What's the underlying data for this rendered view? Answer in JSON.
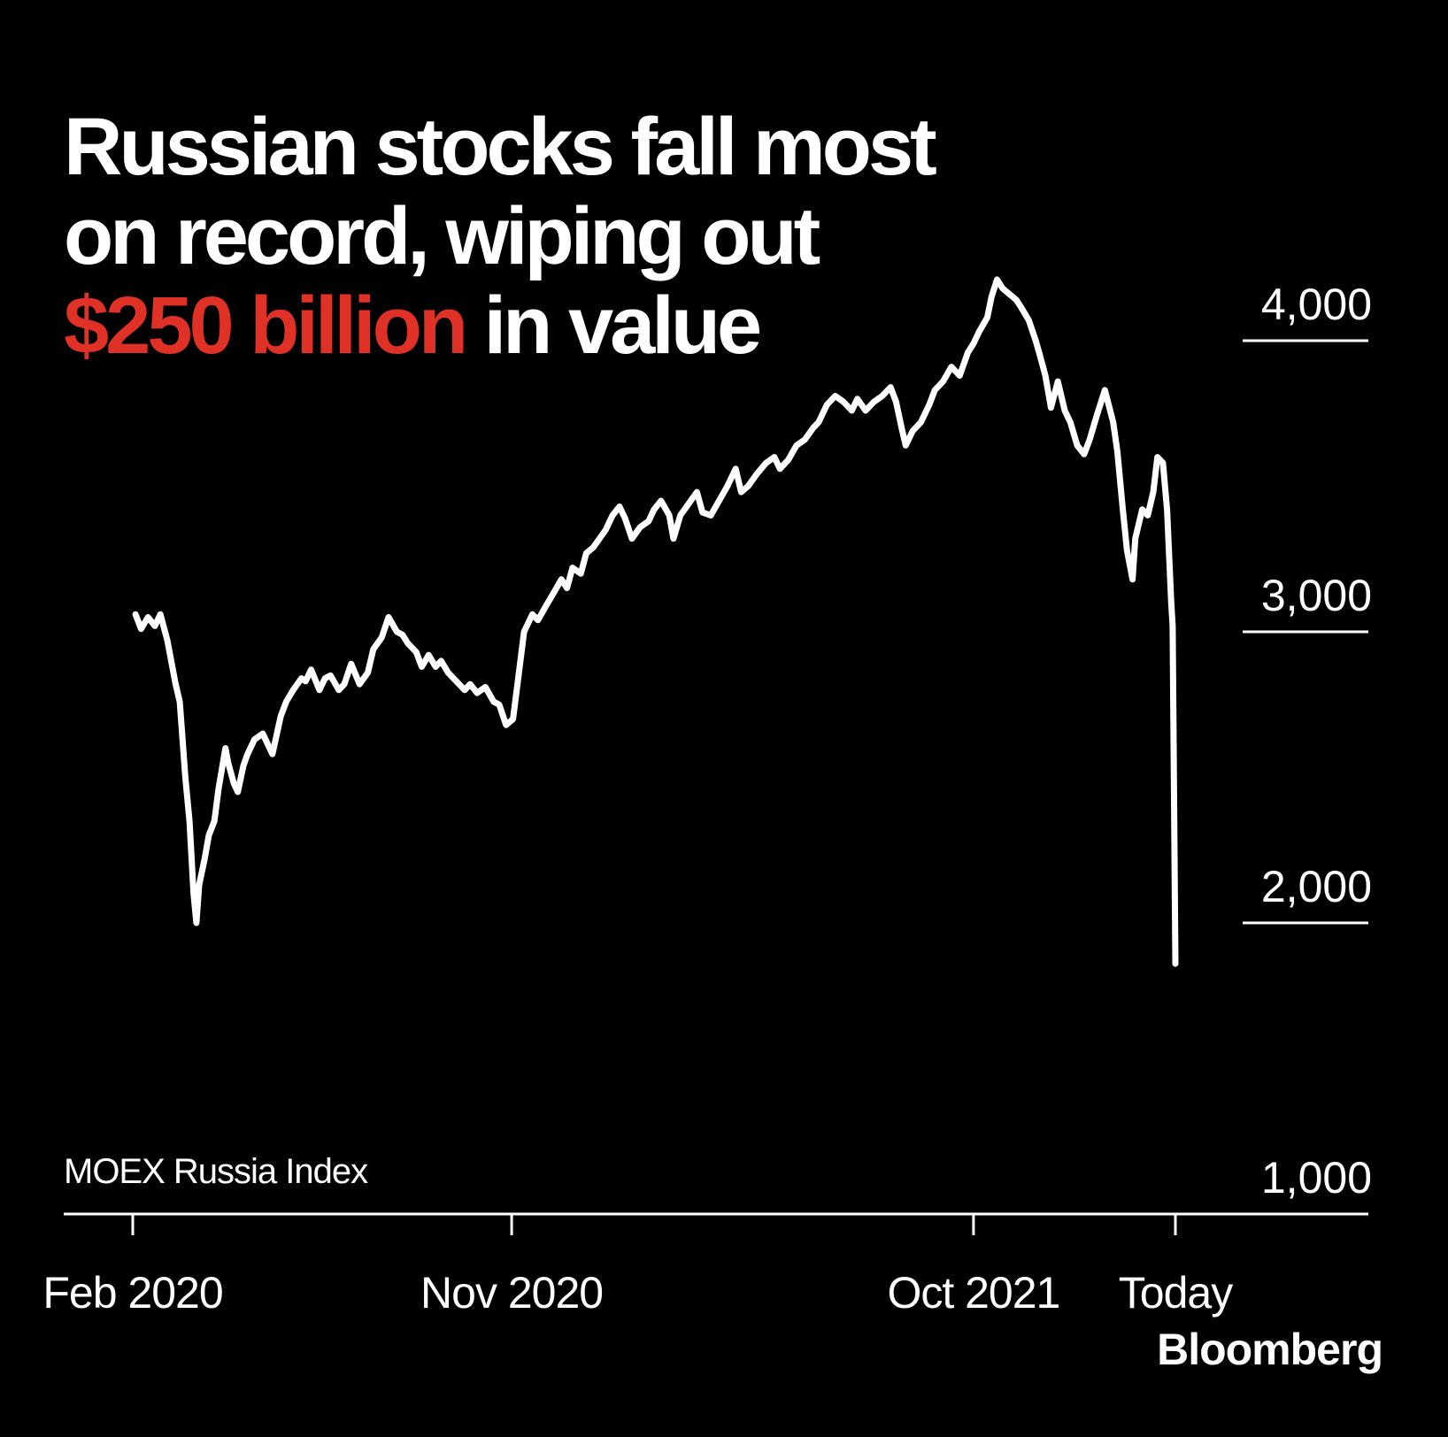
{
  "title_lines": [
    "Russian stocks fall most",
    "on record, wiping out"
  ],
  "title_highlight": "$250 billion",
  "title_rest": " in value",
  "brand": "Bloomberg",
  "colors": {
    "background": "#000000",
    "line": "#ffffff",
    "highlight": "#e03127"
  },
  "chart_data": {
    "type": "line",
    "title": "Russian stocks fall most on record, wiping out $250 billion in value",
    "series_label": "MOEX Russia Index",
    "grid": false,
    "ylim": [
      1000,
      4200
    ],
    "y_ticks": [
      {
        "value": 1000,
        "label": "1,000"
      },
      {
        "value": 2000,
        "label": "2,000"
      },
      {
        "value": 3000,
        "label": "3,000"
      },
      {
        "value": 4000,
        "label": "4,000"
      }
    ],
    "x_ticks": [
      {
        "date": "2020-02-01",
        "label": "Feb 2020"
      },
      {
        "date": "2020-11-01",
        "label": "Nov 2020"
      },
      {
        "date": "2021-10-01",
        "label": "Oct 2021"
      },
      {
        "date": "2022-02-24",
        "label": "Today"
      }
    ],
    "series": [
      {
        "points": [
          [
            "2020-02-03",
            3060
          ],
          [
            "2020-02-07",
            3010
          ],
          [
            "2020-02-12",
            3050
          ],
          [
            "2020-02-17",
            3020
          ],
          [
            "2020-02-21",
            3060
          ],
          [
            "2020-02-26",
            2970
          ],
          [
            "2020-03-03",
            2820
          ],
          [
            "2020-03-06",
            2760
          ],
          [
            "2020-03-10",
            2500
          ],
          [
            "2020-03-13",
            2350
          ],
          [
            "2020-03-16",
            2100
          ],
          [
            "2020-03-18",
            2000
          ],
          [
            "2020-03-20",
            2130
          ],
          [
            "2020-03-24",
            2220
          ],
          [
            "2020-03-27",
            2300
          ],
          [
            "2020-03-31",
            2350
          ],
          [
            "2020-04-03",
            2460
          ],
          [
            "2020-04-08",
            2600
          ],
          [
            "2020-04-10",
            2550
          ],
          [
            "2020-04-14",
            2480
          ],
          [
            "2020-04-17",
            2450
          ],
          [
            "2020-04-21",
            2540
          ],
          [
            "2020-04-24",
            2580
          ],
          [
            "2020-04-29",
            2630
          ],
          [
            "2020-05-05",
            2650
          ],
          [
            "2020-05-12",
            2580
          ],
          [
            "2020-05-18",
            2710
          ],
          [
            "2020-05-22",
            2760
          ],
          [
            "2020-05-27",
            2800
          ],
          [
            "2020-06-02",
            2840
          ],
          [
            "2020-06-05",
            2830
          ],
          [
            "2020-06-09",
            2870
          ],
          [
            "2020-06-15",
            2800
          ],
          [
            "2020-06-19",
            2840
          ],
          [
            "2020-06-23",
            2850
          ],
          [
            "2020-06-29",
            2800
          ],
          [
            "2020-07-03",
            2820
          ],
          [
            "2020-07-08",
            2890
          ],
          [
            "2020-07-14",
            2820
          ],
          [
            "2020-07-20",
            2860
          ],
          [
            "2020-07-24",
            2940
          ],
          [
            "2020-07-30",
            2980
          ],
          [
            "2020-08-04",
            3050
          ],
          [
            "2020-08-10",
            3000
          ],
          [
            "2020-08-14",
            2990
          ],
          [
            "2020-08-18",
            2960
          ],
          [
            "2020-08-24",
            2930
          ],
          [
            "2020-08-28",
            2880
          ],
          [
            "2020-09-02",
            2920
          ],
          [
            "2020-09-07",
            2880
          ],
          [
            "2020-09-11",
            2900
          ],
          [
            "2020-09-16",
            2860
          ],
          [
            "2020-09-22",
            2830
          ],
          [
            "2020-09-28",
            2800
          ],
          [
            "2020-10-02",
            2820
          ],
          [
            "2020-10-07",
            2790
          ],
          [
            "2020-10-13",
            2810
          ],
          [
            "2020-10-19",
            2760
          ],
          [
            "2020-10-23",
            2750
          ],
          [
            "2020-10-28",
            2680
          ],
          [
            "2020-11-02",
            2700
          ],
          [
            "2020-11-06",
            2850
          ],
          [
            "2020-11-10",
            3000
          ],
          [
            "2020-11-16",
            3060
          ],
          [
            "2020-11-20",
            3040
          ],
          [
            "2020-11-26",
            3090
          ],
          [
            "2020-12-01",
            3130
          ],
          [
            "2020-12-07",
            3180
          ],
          [
            "2020-12-11",
            3150
          ],
          [
            "2020-12-15",
            3220
          ],
          [
            "2020-12-21",
            3200
          ],
          [
            "2020-12-25",
            3270
          ],
          [
            "2020-12-30",
            3290
          ],
          [
            "2021-01-08",
            3350
          ],
          [
            "2021-01-13",
            3400
          ],
          [
            "2021-01-18",
            3430
          ],
          [
            "2021-01-22",
            3390
          ],
          [
            "2021-01-27",
            3320
          ],
          [
            "2021-02-02",
            3360
          ],
          [
            "2021-02-08",
            3380
          ],
          [
            "2021-02-12",
            3420
          ],
          [
            "2021-02-17",
            3450
          ],
          [
            "2021-02-23",
            3400
          ],
          [
            "2021-02-26",
            3320
          ],
          [
            "2021-03-03",
            3400
          ],
          [
            "2021-03-09",
            3440
          ],
          [
            "2021-03-15",
            3480
          ],
          [
            "2021-03-19",
            3410
          ],
          [
            "2021-03-25",
            3400
          ],
          [
            "2021-03-31",
            3450
          ],
          [
            "2021-04-06",
            3500
          ],
          [
            "2021-04-12",
            3560
          ],
          [
            "2021-04-16",
            3480
          ],
          [
            "2021-04-21",
            3500
          ],
          [
            "2021-04-27",
            3540
          ],
          [
            "2021-05-04",
            3580
          ],
          [
            "2021-05-10",
            3600
          ],
          [
            "2021-05-14",
            3560
          ],
          [
            "2021-05-20",
            3590
          ],
          [
            "2021-05-26",
            3640
          ],
          [
            "2021-06-01",
            3660
          ],
          [
            "2021-06-07",
            3700
          ],
          [
            "2021-06-11",
            3720
          ],
          [
            "2021-06-17",
            3780
          ],
          [
            "2021-06-23",
            3810
          ],
          [
            "2021-06-29",
            3790
          ],
          [
            "2021-07-05",
            3760
          ],
          [
            "2021-07-09",
            3800
          ],
          [
            "2021-07-15",
            3760
          ],
          [
            "2021-07-21",
            3790
          ],
          [
            "2021-07-27",
            3810
          ],
          [
            "2021-08-02",
            3840
          ],
          [
            "2021-08-06",
            3790
          ],
          [
            "2021-08-10",
            3700
          ],
          [
            "2021-08-13",
            3640
          ],
          [
            "2021-08-18",
            3690
          ],
          [
            "2021-08-24",
            3720
          ],
          [
            "2021-08-30",
            3780
          ],
          [
            "2021-09-03",
            3830
          ],
          [
            "2021-09-09",
            3860
          ],
          [
            "2021-09-15",
            3910
          ],
          [
            "2021-09-21",
            3880
          ],
          [
            "2021-09-27",
            3960
          ],
          [
            "2021-10-01",
            3990
          ],
          [
            "2021-10-05",
            4030
          ],
          [
            "2021-10-11",
            4080
          ],
          [
            "2021-10-14",
            4150
          ],
          [
            "2021-10-18",
            4210
          ],
          [
            "2021-10-22",
            4180
          ],
          [
            "2021-10-27",
            4160
          ],
          [
            "2021-11-01",
            4140
          ],
          [
            "2021-11-05",
            4110
          ],
          [
            "2021-11-10",
            4070
          ],
          [
            "2021-11-15",
            4000
          ],
          [
            "2021-11-18",
            3950
          ],
          [
            "2021-11-22",
            3880
          ],
          [
            "2021-11-26",
            3770
          ],
          [
            "2021-12-01",
            3860
          ],
          [
            "2021-12-06",
            3760
          ],
          [
            "2021-12-10",
            3720
          ],
          [
            "2021-12-15",
            3640
          ],
          [
            "2021-12-20",
            3610
          ],
          [
            "2021-12-24",
            3660
          ],
          [
            "2021-12-29",
            3740
          ],
          [
            "2022-01-04",
            3830
          ],
          [
            "2022-01-10",
            3720
          ],
          [
            "2022-01-13",
            3620
          ],
          [
            "2022-01-17",
            3420
          ],
          [
            "2022-01-20",
            3280
          ],
          [
            "2022-01-24",
            3180
          ],
          [
            "2022-01-26",
            3320
          ],
          [
            "2022-01-31",
            3420
          ],
          [
            "2022-02-04",
            3400
          ],
          [
            "2022-02-08",
            3480
          ],
          [
            "2022-02-11",
            3600
          ],
          [
            "2022-02-15",
            3580
          ],
          [
            "2022-02-18",
            3420
          ],
          [
            "2022-02-21",
            3100
          ],
          [
            "2022-02-22",
            3020
          ],
          [
            "2022-02-24",
            1860
          ]
        ]
      }
    ]
  }
}
